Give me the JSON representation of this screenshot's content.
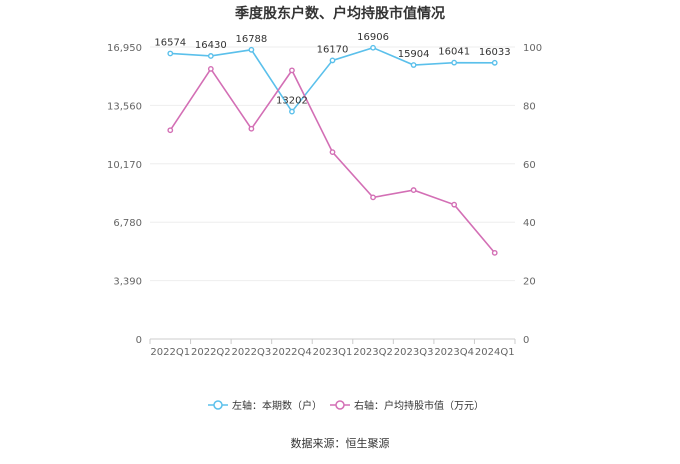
{
  "chart_data": {
    "type": "line",
    "title": "季度股东户数、户均持股市值情况",
    "categories": [
      "2022Q1",
      "2022Q2",
      "2022Q3",
      "2022Q4",
      "2023Q1",
      "2023Q2",
      "2023Q3",
      "2023Q4",
      "2024Q1"
    ],
    "y_left": {
      "ylim": [
        0,
        16950
      ],
      "ticks": [
        0,
        3390,
        6780,
        10170,
        13560,
        16950
      ],
      "tick_labels": [
        "0",
        "3,390",
        "6,780",
        "10,170",
        "13,560",
        "16,950"
      ]
    },
    "y_right": {
      "ylim": [
        0,
        100
      ],
      "ticks": [
        0,
        20,
        40,
        60,
        80,
        100
      ],
      "tick_labels": [
        "0",
        "20",
        "40",
        "60",
        "80",
        "100"
      ]
    },
    "series": [
      {
        "name": "左轴：本期数（户）",
        "axis": "left",
        "color": "#5bc0eb",
        "values": [
          16574,
          16430,
          16788,
          13202,
          16170,
          16906,
          15904,
          16041,
          16033
        ],
        "data_labels": [
          "16574",
          "16430",
          "16788",
          "13202",
          "16170",
          "16906",
          "15904",
          "16041",
          "16033"
        ]
      },
      {
        "name": "右轴：户均持股市值（万元）",
        "axis": "right",
        "color": "#d36fb5",
        "values": [
          71.5,
          92.5,
          72,
          92,
          64,
          48.5,
          51,
          46,
          29.5
        ]
      }
    ],
    "grid": true,
    "legend_position": "bottom"
  },
  "footer": {
    "source": "数据来源：恒生聚源"
  }
}
